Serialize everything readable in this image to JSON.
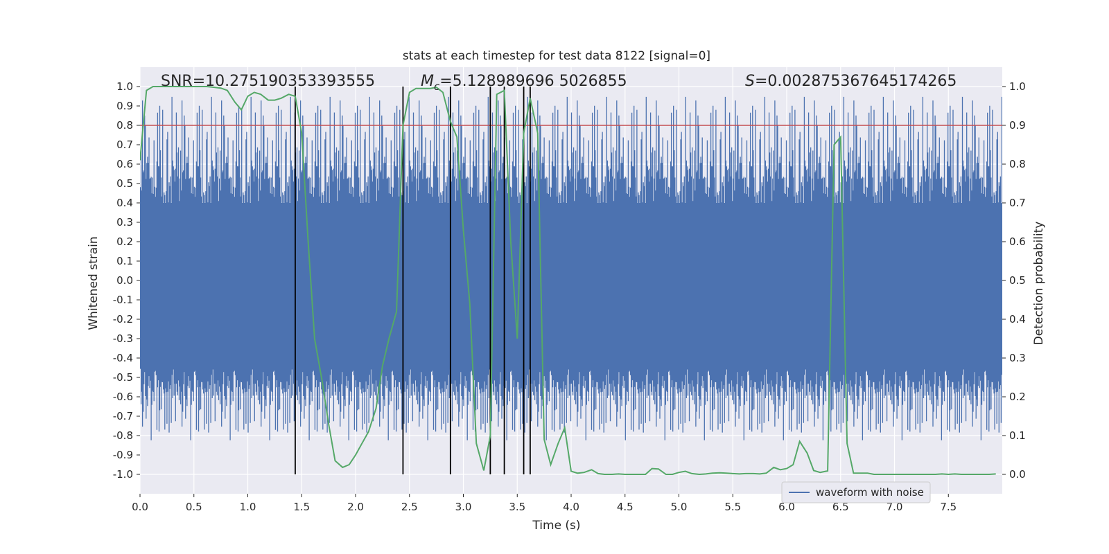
{
  "chart_data": {
    "type": "line",
    "title": "stats at each timestep for test data 8122 [signal=0]",
    "xlabel": "Time (s)",
    "ylabel_left": "Whitened strain",
    "ylabel_right": "Detection probability",
    "xlim": [
      0,
      8
    ],
    "ylim_left": [
      -1.1,
      1.1
    ],
    "ylim_right": [
      -0.05,
      1.05
    ],
    "xticks": [
      "0.0",
      "0.5",
      "1.0",
      "1.5",
      "2.0",
      "2.5",
      "3.0",
      "3.5",
      "4.0",
      "4.5",
      "5.0",
      "5.5",
      "6.0",
      "6.5",
      "7.0",
      "7.5"
    ],
    "yticks_left": [
      "-1.0",
      "-0.9",
      "-0.8",
      "-0.7",
      "-0.6",
      "-0.5",
      "-0.4",
      "-0.3",
      "-0.2",
      "-0.1",
      "0.0",
      "0.1",
      "0.2",
      "0.3",
      "0.4",
      "0.5",
      "0.6",
      "0.7",
      "0.8",
      "0.9",
      "1.0"
    ],
    "yticks_right": [
      "0.0",
      "0.1",
      "0.2",
      "0.3",
      "0.4",
      "0.5",
      "0.6",
      "0.7",
      "0.8",
      "0.9",
      "1.0"
    ],
    "annotations": {
      "snr": "SNR=10.275190353393555",
      "mc_symbol": "M",
      "mc_sub": "c",
      "mc_value": "=5.128989696 5026855",
      "s_symbol": "S",
      "s_value": "=0.002875367645174265"
    },
    "legend": {
      "label": "waveform with noise",
      "position": "lower-right"
    },
    "threshold": {
      "y": 0.9,
      "color": "#c44e52"
    },
    "detections_x": [
      1.44,
      2.44,
      2.88,
      3.25,
      3.38,
      3.56,
      3.62
    ],
    "probability": {
      "color": "#55a868",
      "x": [
        0.0,
        0.06,
        0.12,
        0.19,
        0.25,
        0.31,
        0.38,
        0.44,
        0.5,
        0.56,
        0.62,
        0.69,
        0.75,
        0.81,
        0.88,
        0.94,
        1.0,
        1.06,
        1.12,
        1.19,
        1.25,
        1.31,
        1.38,
        1.44,
        1.5,
        1.56,
        1.62,
        1.69,
        1.75,
        1.81,
        1.88,
        1.94,
        2.0,
        2.06,
        2.12,
        2.19,
        2.25,
        2.31,
        2.38,
        2.44,
        2.5,
        2.56,
        2.62,
        2.69,
        2.75,
        2.81,
        2.88,
        2.94,
        3.0,
        3.06,
        3.12,
        3.19,
        3.25,
        3.31,
        3.38,
        3.44,
        3.5,
        3.56,
        3.62,
        3.69,
        3.75,
        3.81,
        3.88,
        3.94,
        4.0,
        4.06,
        4.12,
        4.19,
        4.25,
        4.31,
        4.38,
        4.44,
        4.5,
        4.56,
        4.62,
        4.69,
        4.75,
        4.81,
        4.88,
        4.94,
        5.0,
        5.06,
        5.12,
        5.19,
        5.25,
        5.31,
        5.38,
        5.44,
        5.5,
        5.56,
        5.62,
        5.69,
        5.75,
        5.81,
        5.88,
        5.94,
        6.0,
        6.06,
        6.12,
        6.19,
        6.25,
        6.31,
        6.38,
        6.44,
        6.5,
        6.56,
        6.62,
        6.69,
        6.75,
        6.81,
        6.88,
        6.94,
        7.0,
        7.06,
        7.12,
        7.19,
        7.25,
        7.31,
        7.38,
        7.44,
        7.5,
        7.56,
        7.62,
        7.69,
        7.75,
        7.81,
        7.88,
        7.94
      ],
      "y": [
        0.81,
        0.99,
        1.0,
        1.0,
        1.0,
        1.0,
        1.0,
        1.0,
        1.0,
        1.0,
        1.0,
        0.998,
        0.996,
        0.99,
        0.96,
        0.94,
        0.975,
        0.985,
        0.98,
        0.965,
        0.965,
        0.97,
        0.98,
        0.975,
        0.88,
        0.6,
        0.35,
        0.24,
        0.13,
        0.035,
        0.018,
        0.025,
        0.05,
        0.08,
        0.11,
        0.17,
        0.28,
        0.35,
        0.42,
        0.9,
        0.985,
        0.995,
        0.995,
        0.995,
        0.998,
        0.985,
        0.91,
        0.87,
        0.63,
        0.44,
        0.08,
        0.01,
        0.1,
        0.98,
        0.99,
        0.6,
        0.35,
        0.88,
        0.97,
        0.88,
        0.09,
        0.025,
        0.08,
        0.12,
        0.008,
        0.003,
        0.005,
        0.012,
        0.002,
        0.0,
        0.0,
        0.001,
        0.0,
        0.0,
        0.0,
        0.0,
        0.015,
        0.014,
        0.0,
        0.0,
        0.005,
        0.008,
        0.002,
        0.0,
        0.001,
        0.003,
        0.004,
        0.003,
        0.002,
        0.001,
        0.002,
        0.002,
        0.001,
        0.003,
        0.018,
        0.012,
        0.015,
        0.025,
        0.085,
        0.055,
        0.01,
        0.005,
        0.009,
        0.85,
        0.87,
        0.08,
        0.003,
        0.003,
        0.003,
        0.0,
        0.0,
        0.0,
        0.0,
        0.0,
        0.0,
        0.0,
        0.0,
        0.0,
        0.0,
        0.001,
        0.0,
        0.001,
        0.0,
        0.0,
        0.0,
        0.0,
        0.0,
        0.001
      ]
    },
    "strain": {
      "color": "#4c72b0",
      "n_samples": 1200,
      "core_amplitude": 0.4,
      "envelope_min": [
        -0.6,
        -0.9
      ],
      "envelope_max": [
        0.5,
        1.0
      ]
    }
  }
}
